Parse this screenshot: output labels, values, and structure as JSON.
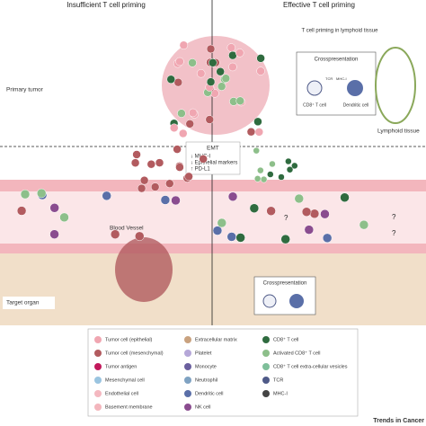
{
  "header": {
    "left": "Insufficient T cell priming",
    "right": "Effective T cell priming"
  },
  "regions": {
    "primary_tumor": "Primary tumor",
    "blood_vessel": "Blood Vessel",
    "target_organ": "Target organ",
    "lymphoid_tissue": "Lymphoid tissue"
  },
  "emt": {
    "title": "EMT",
    "lines": [
      "↓ MHC-I",
      "↓ Epithelial markers",
      "↑ PD-L1"
    ]
  },
  "lymph_box": {
    "title": "T cell priming in lymphoid tissue",
    "crosspresentation": "Crosspresentation",
    "tcr": "TCR",
    "mhc": "MHC-I",
    "t_cell": "CD8⁺ T cell",
    "dendritic": "Dendritic cell"
  },
  "bottom_box": {
    "title": "Crosspresentation"
  },
  "question": "?",
  "legend": {
    "items": [
      "Tumor cell (epithelial)",
      "Tumor cell (mesenchymal)",
      "Tumor antigen",
      "Mesenchymal cell",
      "Endothelial cell",
      "Basement membrane",
      "Extracellular matrix",
      "Platelet",
      "Monocyte",
      "Neutrophil",
      "Dendritic cell",
      "NK cell",
      "CD8⁺ T cell",
      "Activated CD8⁺ T cell",
      "CD8⁺ T cell extra-cellular vesicles",
      "TCR",
      "MHC-I"
    ]
  },
  "footer": "Trends in Cancer"
}
